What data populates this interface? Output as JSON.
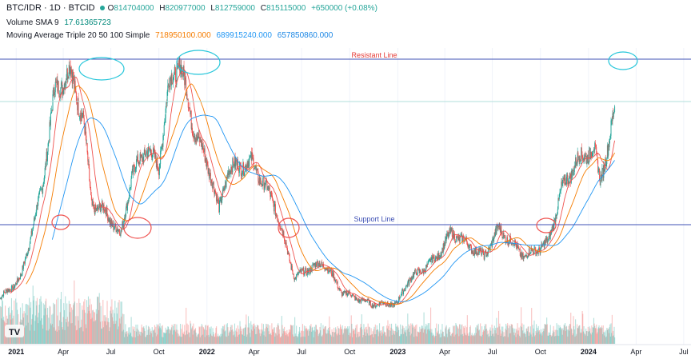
{
  "header": {
    "symbol": "BTC/IDR · 1D · BTCID",
    "ohlc": {
      "open_label": "O",
      "open": "814704000",
      "high_label": "H",
      "high": "820977000",
      "low_label": "L",
      "low": "812759000",
      "close_label": "C",
      "close": "815115000",
      "change": "+650000 (+0.08%)"
    },
    "volume_label": "Volume SMA 9",
    "volume_value": "17.61365723",
    "ma_label": "Moving Average Triple 20 50 100 Simple",
    "ma_values": [
      "718950100.000",
      "689915240.000",
      "657850860.000"
    ]
  },
  "colors": {
    "up": "#26a69a",
    "down": "#ef5350",
    "ma_fast": "#ef5350",
    "ma_mid": "#f57c00",
    "ma_slow": "#2196f3",
    "annotation_circle_teal": "#26c6da",
    "annotation_circle_red": "#ef5350",
    "resistance_line": "#3f51b5",
    "support_line": "#3f51b5"
  },
  "annotations": {
    "resistant_line_label": "Resistant Line",
    "support_line_label": "Support Line"
  },
  "chart_data": {
    "type": "candlestick",
    "title": "",
    "x_ticks": [
      "2021",
      "Apr",
      "Jul",
      "Oct",
      "2022",
      "Apr",
      "Jul",
      "Oct",
      "2023",
      "Apr",
      "Jul",
      "Oct",
      "2024",
      "Apr",
      "Jul"
    ],
    "price_anchors": [
      [
        "2020-12-01",
        270
      ],
      [
        "2021-01-10",
        330
      ],
      [
        "2021-02-20",
        590
      ],
      [
        "2021-03-15",
        860
      ],
      [
        "2021-04-14",
        920
      ],
      [
        "2021-05-10",
        780
      ],
      [
        "2021-05-25",
        540
      ],
      [
        "2021-06-20",
        520
      ],
      [
        "2021-07-20",
        450
      ],
      [
        "2021-08-10",
        620
      ],
      [
        "2021-09-06",
        700
      ],
      [
        "2021-10-01",
        650
      ],
      [
        "2021-10-20",
        880
      ],
      [
        "2021-11-10",
        950
      ],
      [
        "2021-12-04",
        770
      ],
      [
        "2022-01-10",
        620
      ],
      [
        "2022-01-24",
        520
      ],
      [
        "2022-02-10",
        640
      ],
      [
        "2022-03-28",
        660
      ],
      [
        "2022-05-10",
        540
      ],
      [
        "2022-06-18",
        330
      ],
      [
        "2022-07-20",
        360
      ],
      [
        "2022-08-15",
        370
      ],
      [
        "2022-09-15",
        290
      ],
      [
        "2022-11-09",
        255
      ],
      [
        "2022-12-31",
        255
      ],
      [
        "2023-01-20",
        320
      ],
      [
        "2023-03-15",
        385
      ],
      [
        "2023-04-14",
        460
      ],
      [
        "2023-06-15",
        390
      ],
      [
        "2023-07-13",
        470
      ],
      [
        "2023-09-01",
        390
      ],
      [
        "2023-10-16",
        430
      ],
      [
        "2023-11-10",
        580
      ],
      [
        "2023-12-08",
        660
      ],
      [
        "2024-01-11",
        700
      ],
      [
        "2024-01-23",
        610
      ],
      [
        "2024-02-10",
        720
      ],
      [
        "2024-02-20",
        810
      ]
    ],
    "x_range": [
      "2020-12-01",
      "2024-07-15"
    ],
    "volume": "bars along bottom, larger in early 2021"
  }
}
